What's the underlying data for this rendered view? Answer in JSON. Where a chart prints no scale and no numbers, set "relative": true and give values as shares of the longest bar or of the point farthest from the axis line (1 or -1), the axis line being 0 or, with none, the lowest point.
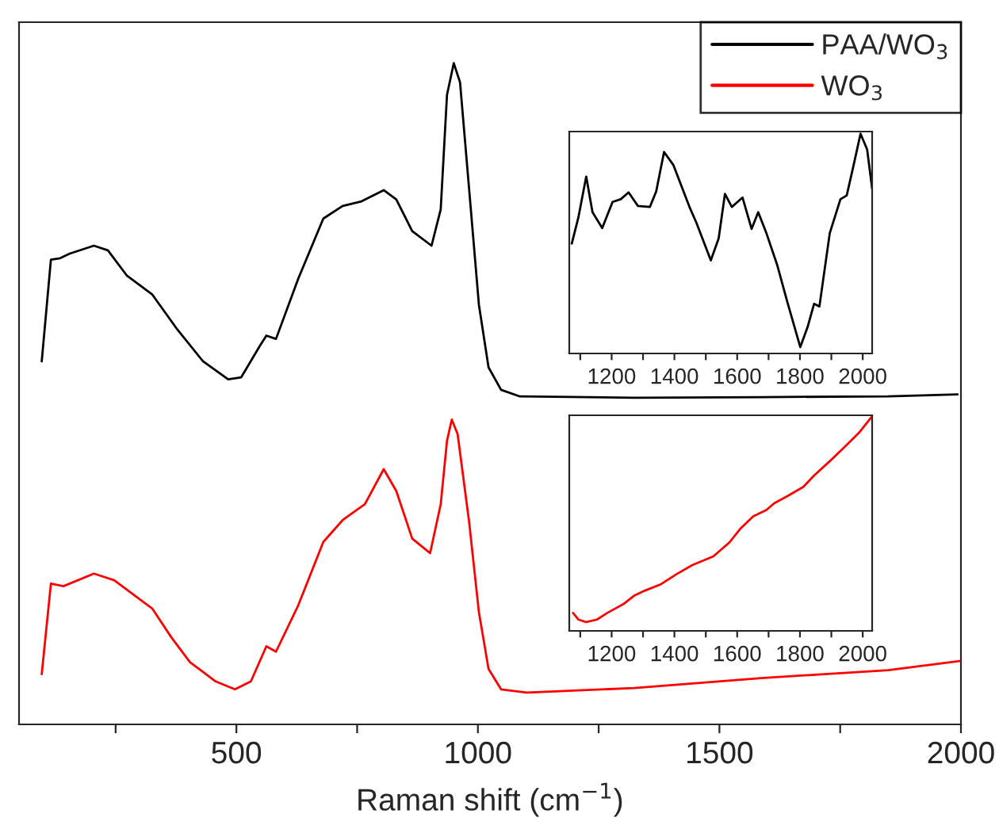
{
  "chart_data": [
    {
      "type": "line",
      "xlabel": "Raman shift (cm$^{−1}$)",
      "relative": true,
      "tick_labels": "x",
      "legend": "top right",
      "grid": false,
      "xlim": [
        50,
        2000
      ],
      "xticks": [
        {
          "value": 250,
          "label": null
        },
        500,
        {
          "value": 750,
          "label": null
        },
        1000,
        {
          "value": 1250,
          "label": null
        },
        1500,
        {
          "value": 1750,
          "label": null
        },
        2000
      ],
      "series": [
        {
          "name": "PAA/WO$_{3}$",
          "color": "#000000",
          "x": [
            97,
            116,
            135,
            155,
            205,
            234,
            273,
            326,
            378,
            431,
            483,
            510,
            549,
            562,
            582,
            628,
            680,
            720,
            759,
            805,
            831,
            864,
            904,
            923,
            936,
            950,
            963,
            982,
            1002,
            1022,
            1048,
            1087,
            1324,
            1586,
            1849,
            1993
          ],
          "values": [
            0.549,
            0.703,
            0.705,
            0.712,
            0.724,
            0.717,
            0.679,
            0.65,
            0.597,
            0.549,
            0.522,
            0.525,
            0.573,
            0.588,
            0.583,
            0.674,
            0.765,
            0.784,
            0.791,
            0.808,
            0.794,
            0.746,
            0.724,
            0.779,
            0.952,
            1.0,
            0.971,
            0.808,
            0.635,
            0.54,
            0.506,
            0.496,
            0.494,
            0.495,
            0.496,
            0.499
          ]
        },
        {
          "name": "WO$_{3}$",
          "color": "#ff0000",
          "x": [
            97,
            116,
            142,
            205,
            247,
            326,
            365,
            404,
            457,
            497,
            530,
            562,
            582,
            628,
            680,
            720,
            766,
            805,
            831,
            864,
            901,
            923,
            936,
            946,
            958,
            982,
            1002,
            1022,
            1048,
            1101,
            1324,
            1586,
            1849,
            2000
          ],
          "values": [
            0.076,
            0.213,
            0.209,
            0.228,
            0.218,
            0.175,
            0.132,
            0.094,
            0.065,
            0.053,
            0.065,
            0.118,
            0.11,
            0.18,
            0.276,
            0.309,
            0.333,
            0.386,
            0.353,
            0.281,
            0.259,
            0.333,
            0.429,
            0.461,
            0.439,
            0.305,
            0.17,
            0.084,
            0.053,
            0.048,
            0.055,
            0.07,
            0.082,
            0.096
          ]
        }
      ]
    },
    {
      "type": "line",
      "relative": true,
      "tick_labels": "x",
      "grid": false,
      "xlim": [
        1065,
        2030
      ],
      "xticks": [
        {
          "value": 1100,
          "label": null
        },
        1200,
        {
          "value": 1300,
          "label": null
        },
        1400,
        {
          "value": 1500,
          "label": null
        },
        1600,
        {
          "value": 1700,
          "label": null
        },
        1800,
        {
          "value": 1900,
          "label": null
        },
        2000
      ],
      "series": [
        {
          "color": "#000000",
          "x": [
            1073,
            1094,
            1119,
            1139,
            1170,
            1203,
            1229,
            1254,
            1284,
            1322,
            1342,
            1367,
            1397,
            1448,
            1470,
            1516,
            1541,
            1561,
            1583,
            1617,
            1646,
            1667,
            1693,
            1727,
            1760,
            1801,
            1824,
            1845,
            1862,
            1895,
            1929,
            1949,
            1971,
            1993,
            2014,
            2030
          ],
          "values": [
            0.5,
            0.619,
            0.805,
            0.643,
            0.571,
            0.69,
            0.702,
            0.733,
            0.671,
            0.667,
            0.738,
            0.917,
            0.857,
            0.667,
            0.595,
            0.424,
            0.524,
            0.726,
            0.667,
            0.71,
            0.567,
            0.643,
            0.548,
            0.405,
            0.233,
            0.029,
            0.119,
            0.226,
            0.214,
            0.548,
            0.702,
            0.719,
            0.857,
            1.0,
            0.929,
            0.75
          ]
        }
      ]
    },
    {
      "type": "line",
      "relative": true,
      "tick_labels": "x",
      "grid": false,
      "xlim": [
        1065,
        2030
      ],
      "xticks": [
        {
          "value": 1100,
          "label": null
        },
        1200,
        {
          "value": 1300,
          "label": null
        },
        1400,
        {
          "value": 1500,
          "label": null
        },
        1600,
        {
          "value": 1700,
          "label": null
        },
        1800,
        {
          "value": 1900,
          "label": null
        },
        2000
      ],
      "series": [
        {
          "color": "#ff0000",
          "x": [
            1077,
            1094,
            1119,
            1153,
            1186,
            1237,
            1271,
            1305,
            1355,
            1406,
            1457,
            1524,
            1575,
            1609,
            1651,
            1693,
            1718,
            1760,
            1811,
            1845,
            1895,
            1946,
            1988,
            2027
          ],
          "values": [
            0.084,
            0.053,
            0.041,
            0.053,
            0.084,
            0.125,
            0.164,
            0.188,
            0.217,
            0.265,
            0.308,
            0.349,
            0.414,
            0.477,
            0.537,
            0.566,
            0.598,
            0.631,
            0.675,
            0.728,
            0.795,
            0.867,
            0.928,
            1.0
          ]
        }
      ]
    }
  ]
}
